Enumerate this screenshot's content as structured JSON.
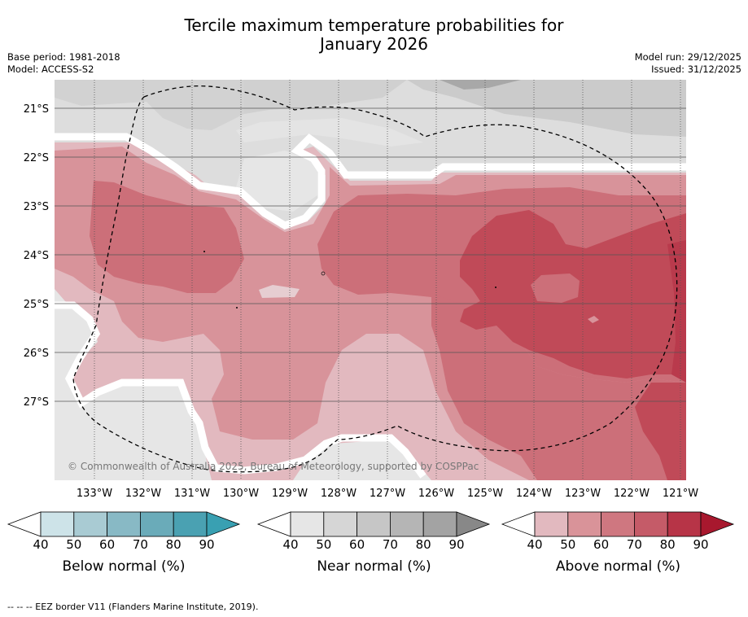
{
  "title": {
    "line1": "Tercile maximum temperature probabilities for",
    "line2": "January 2026"
  },
  "meta": {
    "base_period": "Base period: 1981-2018",
    "model": "Model: ACCESS-S2",
    "model_run": "Model run: 29/12/2025",
    "issued": "Issued: 31/12/2025"
  },
  "map": {
    "lat_labels": [
      "21°S",
      "22°S",
      "23°S",
      "24°S",
      "25°S",
      "26°S",
      "27°S"
    ],
    "lon_labels": [
      "133°W",
      "132°W",
      "131°W",
      "130°W",
      "129°W",
      "128°W",
      "127°W",
      "126°W",
      "125°W",
      "124°W",
      "123°W",
      "122°W",
      "121°W"
    ],
    "copyright": "© Commonwealth of Australia 2025, Bureau of Meteorology, supported by COSPPac"
  },
  "colorbars": [
    {
      "label": "Below normal (%)",
      "ticks": [
        "40",
        "50",
        "60",
        "70",
        "80",
        "90"
      ],
      "colors": [
        "#ffffff",
        "#cde3e8",
        "#a9cbd3",
        "#88b9c5",
        "#6aabb9",
        "#4aa1b2",
        "#39a0b2"
      ]
    },
    {
      "label": "Near normal (%)",
      "ticks": [
        "40",
        "50",
        "60",
        "70",
        "80",
        "90"
      ],
      "colors": [
        "#ffffff",
        "#e6e6e6",
        "#d6d6d6",
        "#c6c6c6",
        "#b5b5b5",
        "#a3a3a3",
        "#888888"
      ]
    },
    {
      "label": "Above normal (%)",
      "ticks": [
        "40",
        "50",
        "60",
        "70",
        "80",
        "90"
      ],
      "colors": [
        "#ffffff",
        "#e2b9bf",
        "#d99399",
        "#cf7780",
        "#c55b68",
        "#b73447",
        "#a8182e"
      ]
    }
  ],
  "footer": "--  --  -- EEZ border V11 (Flanders Marine Institute, 2019)."
}
